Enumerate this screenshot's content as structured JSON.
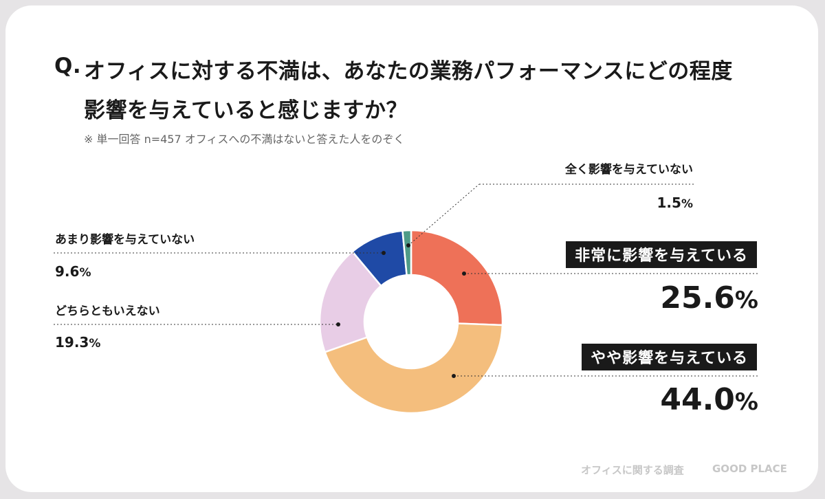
{
  "question": {
    "mark": "Q.",
    "line1": "オフィスに対する不満は、あなたの業務パフォーマンスにどの程度",
    "line2": "影響を与えていると感じますか？"
  },
  "note": "※ 単一回答 n=457 オフィスへの不満はないと答えた人をのぞく",
  "footer": {
    "survey": "オフィスに関する調査",
    "brand": "GOOD PLACE"
  },
  "colors": {
    "very": "#ee7158",
    "somewhat": "#f4be7d",
    "neutral": "#e8cde6",
    "not_much": "#1f4aa6",
    "none": "#4e9b88"
  },
  "chart_data": {
    "type": "pie",
    "subtype": "donut",
    "title": "オフィスに対する不満は、あなたの業務パフォーマンスにどの程度影響を与えていると感じますか？",
    "unit": "%",
    "start": "top, clockwise",
    "slices": [
      {
        "key": "very",
        "label": "非常に影響を与えている",
        "value": 25.6,
        "value_text": "25.6",
        "color": "#ee7158"
      },
      {
        "key": "somewhat",
        "label": "やや影響を与えている",
        "value": 44.0,
        "value_text": "44.0",
        "color": "#f4be7d"
      },
      {
        "key": "neutral",
        "label": "どちらともいえない",
        "value": 19.3,
        "value_text": "19.3",
        "color": "#e8cde6"
      },
      {
        "key": "not_much",
        "label": "あまり影響を与えていない",
        "value": 9.6,
        "value_text": "9.6",
        "color": "#1f4aa6"
      },
      {
        "key": "none",
        "label": "全く影響を与えていない",
        "value": 1.5,
        "value_text": "1.5",
        "color": "#4e9b88"
      }
    ]
  }
}
